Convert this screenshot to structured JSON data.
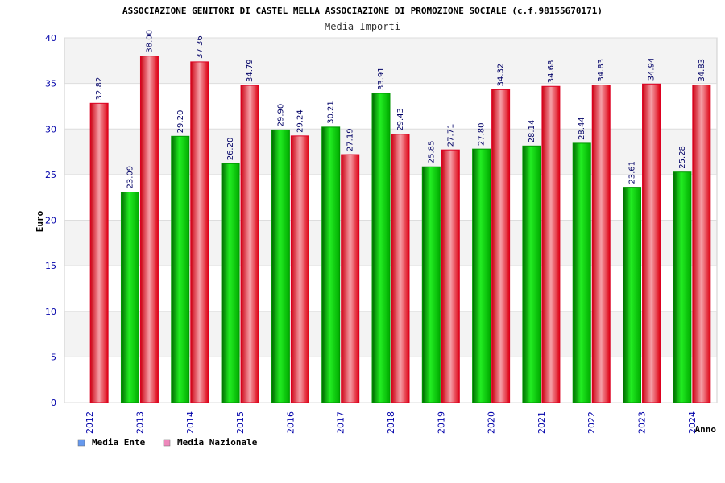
{
  "chart_data": {
    "type": "bar",
    "title": "ASSOCIAZIONE GENITORI DI CASTEL MELLA ASSOCIAZIONE DI PROMOZIONE SOCIALE (c.f.98155670171)",
    "subtitle": "Media Importi",
    "xlabel": "Anno",
    "ylabel": "Euro",
    "ylim": [
      0,
      40
    ],
    "yticks": [
      "0",
      "5",
      "10",
      "15",
      "20",
      "25",
      "30",
      "35",
      "40"
    ],
    "categories": [
      "2012",
      "2013",
      "2014",
      "2015",
      "2016",
      "2017",
      "2018",
      "2019",
      "2020",
      "2021",
      "2022",
      "2023",
      "2024"
    ],
    "series": [
      {
        "name": "Media Ente",
        "color": "#00cc00",
        "values": [
          null,
          23.09,
          29.2,
          26.2,
          29.9,
          30.21,
          33.91,
          25.85,
          27.8,
          28.14,
          28.44,
          23.61,
          25.28
        ],
        "labels": [
          "",
          "23.09",
          "29.20",
          "26.20",
          "29.90",
          "30.21",
          "33.91",
          "25.85",
          "27.80",
          "28.14",
          "28.44",
          "23.61",
          "25.28"
        ]
      },
      {
        "name": "Media Nazionale",
        "color": "#ee1122",
        "values": [
          32.82,
          38.0,
          37.36,
          34.79,
          29.24,
          27.19,
          29.43,
          27.71,
          34.32,
          34.68,
          34.83,
          34.94,
          34.83
        ],
        "labels": [
          "32.82",
          "38.00",
          "37.36",
          "34.79",
          "29.24",
          "27.19",
          "29.43",
          "27.71",
          "34.32",
          "34.68",
          "34.83",
          "34.94",
          "34.83"
        ]
      }
    ],
    "legend": {
      "placement": "bottom-left",
      "items": [
        {
          "label": "Media Ente",
          "swatch": "#6699ee"
        },
        {
          "label": "Media Nazionale",
          "swatch": "#ee88bb"
        }
      ]
    },
    "grid": true
  }
}
